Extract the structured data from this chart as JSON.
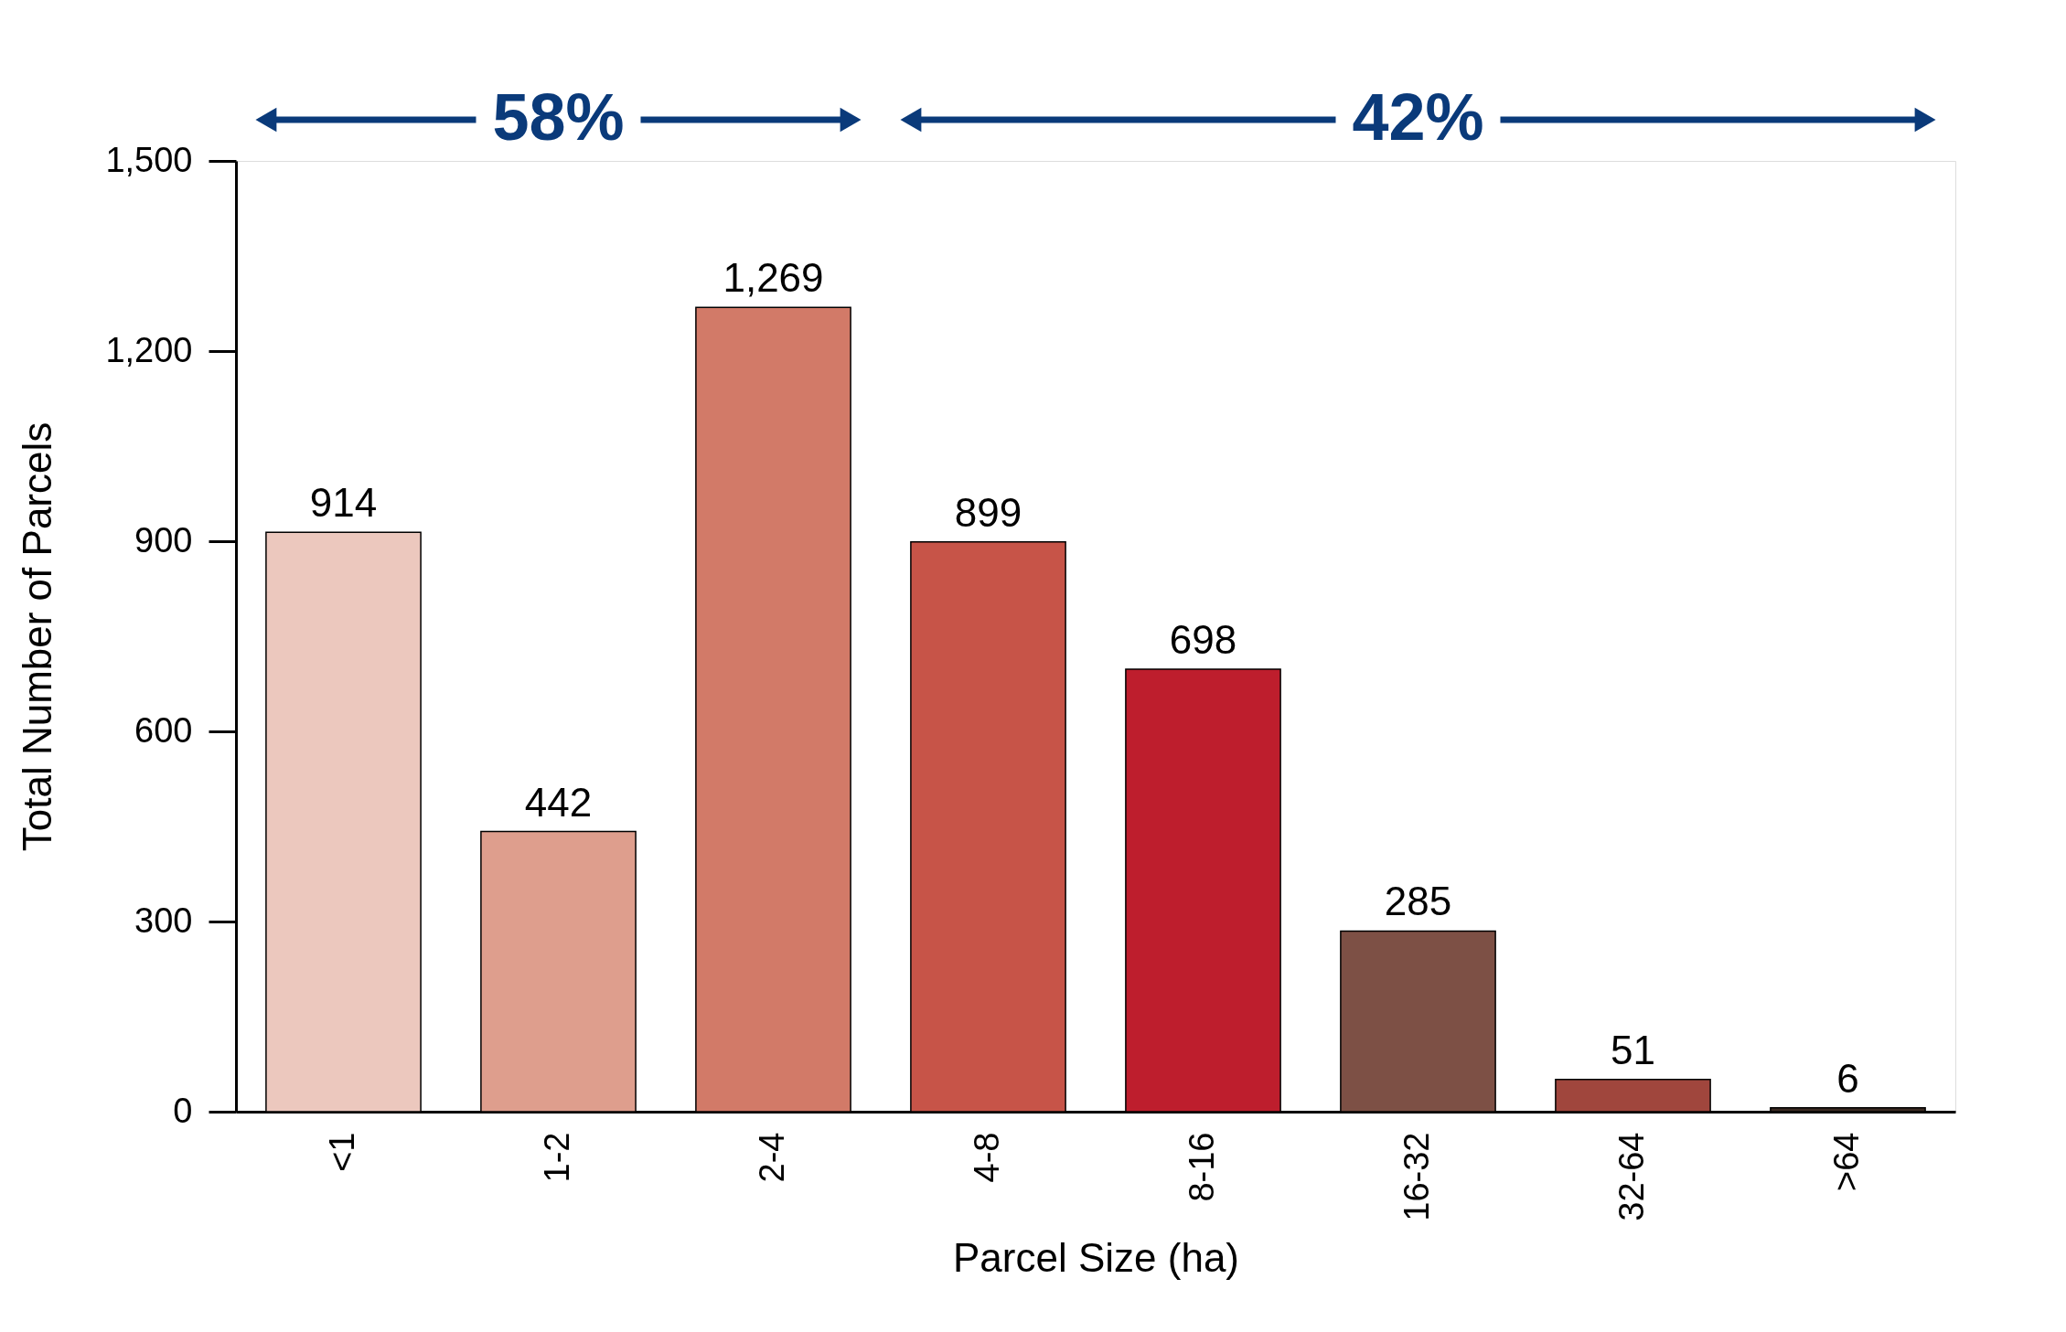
{
  "chart_data": {
    "type": "bar",
    "xlabel": "Parcel Size (ha)",
    "ylabel": "Total Number of Parcels",
    "categories": [
      "<1",
      "1-2",
      "2-4",
      "4-8",
      "8-16",
      "16-32",
      "32-64",
      ">64"
    ],
    "values": [
      914,
      442,
      1269,
      899,
      698,
      285,
      51,
      6
    ],
    "value_labels": [
      "914",
      "442",
      "1,269",
      "899",
      "698",
      "285",
      "51",
      "6"
    ],
    "colors": [
      "#ecc8be",
      "#de9e8d",
      "#d27a68",
      "#c75448",
      "#be1e2d",
      "#7d5045",
      "#a0463d",
      "#3a2a22"
    ],
    "ylim": [
      0,
      1500
    ],
    "yticks": [
      0,
      {
        "value": 300,
        "label": "300"
      },
      {
        "value": 600,
        "label": "600"
      },
      {
        "value": 900,
        "label": "900"
      },
      {
        "value": 1200,
        "label": "1,200"
      },
      {
        "value": 1500,
        "label": "1,500"
      }
    ],
    "grid": false,
    "annotations": [
      "58%",
      "42%"
    ]
  }
}
